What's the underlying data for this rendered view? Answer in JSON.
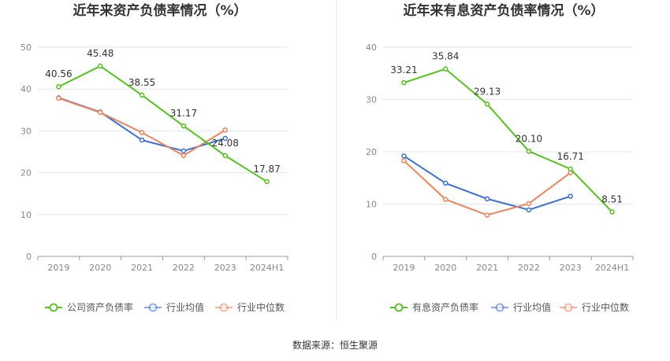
{
  "source_label": "数据来源：恒生聚源",
  "chart_data": [
    {
      "type": "line",
      "title": "近年来资产负债率情况（%）",
      "categories": [
        "2019",
        "2020",
        "2021",
        "2022",
        "2023",
        "2024H1"
      ],
      "yticks": [
        "0",
        "10",
        "20",
        "30",
        "40",
        "50"
      ],
      "ylim": [
        0,
        50
      ],
      "grid": true,
      "legend_position": "bottom",
      "series": [
        {
          "name": "公司资产负债率",
          "color": "#52c41a",
          "values": [
            40.56,
            45.48,
            38.55,
            31.17,
            24.08,
            17.87
          ],
          "labels": [
            "40.56",
            "45.48",
            "38.55",
            "31.17",
            "24.08",
            "17.87"
          ]
        },
        {
          "name": "行业均值",
          "color": "#3a6fd8",
          "values": [
            37.9,
            34.5,
            27.8,
            25.2,
            28.2,
            null
          ]
        },
        {
          "name": "行业中位数",
          "color": "#f0825a",
          "values": [
            37.8,
            34.4,
            29.6,
            24.1,
            30.2,
            null
          ]
        }
      ]
    },
    {
      "type": "line",
      "title": "近年来有息资产负债率情况（%）",
      "categories": [
        "2019",
        "2020",
        "2021",
        "2022",
        "2023",
        "2024H1"
      ],
      "yticks": [
        "0",
        "10",
        "20",
        "30",
        "40"
      ],
      "ylim": [
        0,
        40
      ],
      "grid": true,
      "legend_position": "bottom",
      "series": [
        {
          "name": "有息资产负债率",
          "color": "#52c41a",
          "values": [
            33.21,
            35.84,
            29.13,
            20.1,
            16.71,
            8.51
          ],
          "labels": [
            "33.21",
            "35.84",
            "29.13",
            "20.10",
            "16.71",
            "8.51"
          ]
        },
        {
          "name": "行业均值",
          "color": "#3a6fd8",
          "values": [
            19.2,
            14.0,
            11.0,
            8.9,
            11.5,
            null
          ]
        },
        {
          "name": "行业中位数",
          "color": "#f0825a",
          "values": [
            18.3,
            10.9,
            7.9,
            10.1,
            16.0,
            null
          ]
        }
      ]
    }
  ]
}
